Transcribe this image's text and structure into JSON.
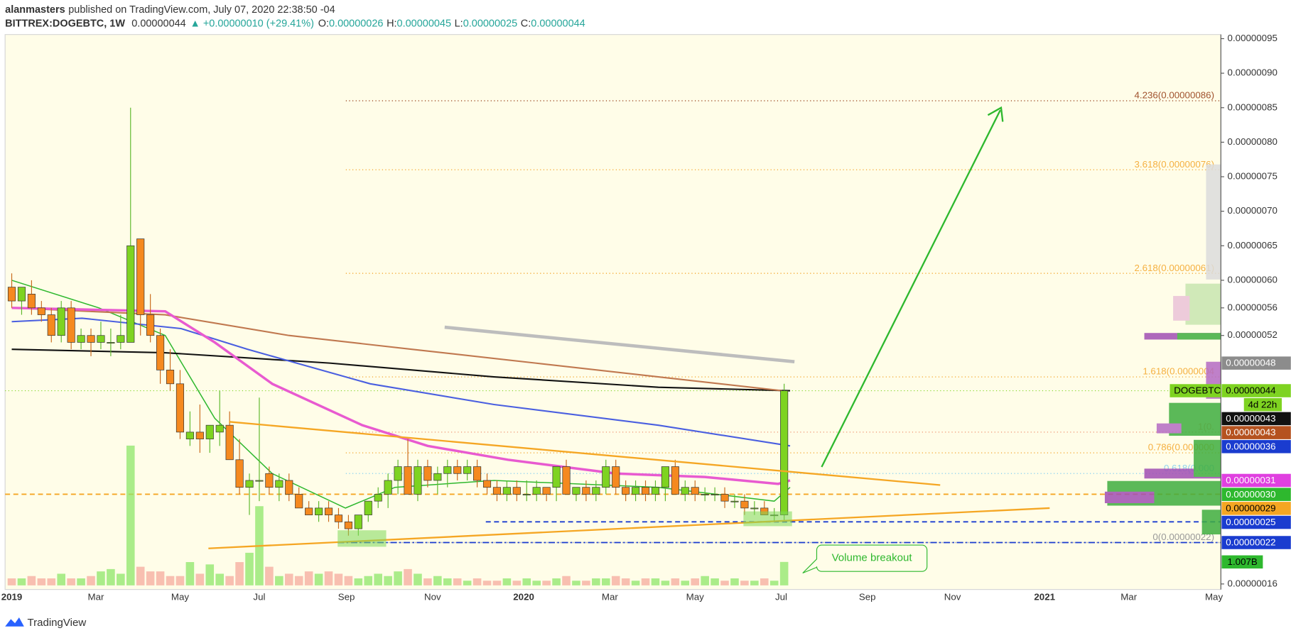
{
  "header": {
    "author": "alanmasters",
    "published": "published on TradingView.com, July 07, 2020 22:38:50 -04",
    "symbol": "BITTREX:DOGEBTC, 1W",
    "last": "0.00000044",
    "change": "▲ +0.00000010 (+29.41%)",
    "o_label": "O:",
    "o": "0.00000026",
    "h_label": "H:",
    "h": "0.00000045",
    "l_label": "L:",
    "l": "0.00000025",
    "c_label": "C:",
    "c": "0.00000044"
  },
  "footer": {
    "brand": "TradingView"
  },
  "chart_data": {
    "type": "candlestick",
    "up_color": "#7ed321",
    "down_color": "#f5891f",
    "ylim": [
      1.52e-07,
      9.56e-07
    ],
    "yticks": [
      {
        "value": 9.5e-07,
        "label": "0.00000095"
      },
      {
        "value": 9e-07,
        "label": "0.00000090"
      },
      {
        "value": 8.5e-07,
        "label": "0.00000085"
      },
      {
        "value": 8e-07,
        "label": "0.00000080"
      },
      {
        "value": 7.5e-07,
        "label": "0.00000075"
      },
      {
        "value": 7e-07,
        "label": "0.00000070"
      },
      {
        "value": 6.5e-07,
        "label": "0.00000065"
      },
      {
        "value": 6e-07,
        "label": "0.00000060"
      },
      {
        "value": 5.6e-07,
        "label": "0.00000056"
      },
      {
        "value": 5.2e-07,
        "label": "0.00000052"
      },
      {
        "value": 1.6e-07,
        "label": "0.00000016"
      }
    ],
    "xlim": [
      -0.67,
      122.1
    ],
    "xticks": [
      {
        "value": 0,
        "label": "2019"
      },
      {
        "value": 8.5,
        "label": "Mar"
      },
      {
        "value": 17,
        "label": "May"
      },
      {
        "value": 25,
        "label": "Jul"
      },
      {
        "value": 33.8,
        "label": "Sep"
      },
      {
        "value": 42.5,
        "label": "Nov"
      },
      {
        "value": 51.7,
        "label": "2020"
      },
      {
        "value": 60.4,
        "label": "Mar"
      },
      {
        "value": 69,
        "label": "May"
      },
      {
        "value": 77.7,
        "label": "Jul"
      },
      {
        "value": 86.4,
        "label": "Sep"
      },
      {
        "value": 95,
        "label": "Nov"
      },
      {
        "value": 104.3,
        "label": "2021"
      },
      {
        "value": 112.8,
        "label": "Mar"
      },
      {
        "value": 121.4,
        "label": "May"
      }
    ],
    "candles": [
      [
        5.9e-07,
        6.1e-07,
        5.6e-07,
        5.7e-07
      ],
      [
        5.7e-07,
        5.9e-07,
        5.5e-07,
        5.9e-07
      ],
      [
        5.8e-07,
        6e-07,
        5.5e-07,
        5.6e-07
      ],
      [
        5.6e-07,
        5.7e-07,
        5.4e-07,
        5.5e-07
      ],
      [
        5.5e-07,
        5.6e-07,
        5.1e-07,
        5.2e-07
      ],
      [
        5.2e-07,
        5.7e-07,
        5.1e-07,
        5.6e-07
      ],
      [
        5.6e-07,
        5.7e-07,
        5e-07,
        5.1e-07
      ],
      [
        5.1e-07,
        5.3e-07,
        5e-07,
        5.2e-07
      ],
      [
        5.2e-07,
        5.3e-07,
        4.9e-07,
        5.1e-07
      ],
      [
        5.1e-07,
        5.4e-07,
        5e-07,
        5.2e-07
      ],
      [
        5.1e-07,
        5.3e-07,
        4.9e-07,
        5.1e-07
      ],
      [
        5.1e-07,
        5.5e-07,
        5e-07,
        5.2e-07
      ],
      [
        5.1e-07,
        8.5e-07,
        5.1e-07,
        6.5e-07
      ],
      [
        6.6e-07,
        6.6e-07,
        5.2e-07,
        5.5e-07
      ],
      [
        5.5e-07,
        5.8e-07,
        5.1e-07,
        5.2e-07
      ],
      [
        5.2e-07,
        5.3e-07,
        4.5e-07,
        4.7e-07
      ],
      [
        4.7e-07,
        5e-07,
        4.4e-07,
        4.5e-07
      ],
      [
        4.5e-07,
        4.7e-07,
        3.7e-07,
        3.8e-07
      ],
      [
        3.7e-07,
        4.1e-07,
        3.6e-07,
        3.8e-07
      ],
      [
        3.8e-07,
        4.2e-07,
        3.5e-07,
        3.7e-07
      ],
      [
        3.7e-07,
        3.9e-07,
        3.5e-07,
        3.9e-07
      ],
      [
        3.8e-07,
        4.4e-07,
        3.6e-07,
        3.9e-07
      ],
      [
        3.9e-07,
        4.1e-07,
        3.4e-07,
        3.4e-07
      ],
      [
        3.4e-07,
        3.7e-07,
        2.9e-07,
        3e-07
      ],
      [
        3e-07,
        3.2e-07,
        2.6e-07,
        3.1e-07
      ],
      [
        3.1e-07,
        4.3e-07,
        2.8e-07,
        3.1e-07
      ],
      [
        3.2e-07,
        3.3e-07,
        2.9e-07,
        3e-07
      ],
      [
        3e-07,
        3.2e-07,
        2.8e-07,
        3.1e-07
      ],
      [
        3.1e-07,
        3.2e-07,
        2.8e-07,
        2.9e-07
      ],
      [
        2.9e-07,
        3e-07,
        2.7e-07,
        2.7e-07
      ],
      [
        2.7e-07,
        2.8e-07,
        2.6e-07,
        2.6e-07
      ],
      [
        2.6e-07,
        2.8e-07,
        2.5e-07,
        2.7e-07
      ],
      [
        2.7e-07,
        2.8e-07,
        2.5e-07,
        2.6e-07
      ],
      [
        2.6e-07,
        2.7e-07,
        2.4e-07,
        2.5e-07
      ],
      [
        2.5e-07,
        2.6e-07,
        2.3e-07,
        2.4e-07
      ],
      [
        2.4e-07,
        2.6e-07,
        2.3e-07,
        2.6e-07
      ],
      [
        2.6e-07,
        2.8e-07,
        2.5e-07,
        2.8e-07
      ],
      [
        2.8e-07,
        3e-07,
        2.7e-07,
        2.9e-07
      ],
      [
        2.9e-07,
        3.2e-07,
        2.7e-07,
        3.1e-07
      ],
      [
        3.1e-07,
        3.4e-07,
        2.9e-07,
        3.3e-07
      ],
      [
        3.3e-07,
        3.7e-07,
        2.9e-07,
        2.9e-07
      ],
      [
        2.9e-07,
        3.4e-07,
        2.8e-07,
        3.3e-07
      ],
      [
        3.3e-07,
        3.4e-07,
        3e-07,
        3.1e-07
      ],
      [
        3.1e-07,
        3.3e-07,
        2.9e-07,
        3.2e-07
      ],
      [
        3.2e-07,
        3.4e-07,
        3e-07,
        3.3e-07
      ],
      [
        3.3e-07,
        3.4e-07,
        3.1e-07,
        3.2e-07
      ],
      [
        3.2e-07,
        3.4e-07,
        3.1e-07,
        3.3e-07
      ],
      [
        3.3e-07,
        3.4e-07,
        3e-07,
        3.1e-07
      ],
      [
        3.1e-07,
        3.2e-07,
        2.9e-07,
        3e-07
      ],
      [
        3e-07,
        3.1e-07,
        2.8e-07,
        2.9e-07
      ],
      [
        2.9e-07,
        3.1e-07,
        2.8e-07,
        3e-07
      ],
      [
        3e-07,
        3.1e-07,
        2.8e-07,
        2.9e-07
      ],
      [
        2.9e-07,
        3.1e-07,
        2.8e-07,
        2.9e-07
      ],
      [
        2.9e-07,
        3.1e-07,
        2.8e-07,
        3e-07
      ],
      [
        3e-07,
        3e-07,
        2.8e-07,
        2.9e-07
      ],
      [
        3e-07,
        3.3e-07,
        2.8e-07,
        3.3e-07
      ],
      [
        3.3e-07,
        3.4e-07,
        2.9e-07,
        2.9e-07
      ],
      [
        2.9e-07,
        3e-07,
        2.8e-07,
        3e-07
      ],
      [
        3e-07,
        3.1e-07,
        2.8e-07,
        2.9e-07
      ],
      [
        2.9e-07,
        3.1e-07,
        2.8e-07,
        3e-07
      ],
      [
        3e-07,
        3.4e-07,
        2.9e-07,
        3.3e-07
      ],
      [
        3.3e-07,
        3.4e-07,
        2.9e-07,
        3e-07
      ],
      [
        3e-07,
        3.1e-07,
        2.8e-07,
        2.9e-07
      ],
      [
        2.9e-07,
        3.1e-07,
        2.8e-07,
        3e-07
      ],
      [
        3e-07,
        3.1e-07,
        2.8e-07,
        2.9e-07
      ],
      [
        2.9e-07,
        3.1e-07,
        2.8e-07,
        3e-07
      ],
      [
        3e-07,
        3.3e-07,
        2.8e-07,
        3.3e-07
      ],
      [
        3.3e-07,
        3.4e-07,
        2.9e-07,
        2.9e-07
      ],
      [
        2.9e-07,
        3.1e-07,
        2.8e-07,
        3e-07
      ],
      [
        3e-07,
        3.1e-07,
        2.8e-07,
        2.9e-07
      ],
      [
        2.9e-07,
        3e-07,
        2.8e-07,
        2.9e-07
      ],
      [
        2.9e-07,
        3e-07,
        2.8e-07,
        2.9e-07
      ],
      [
        2.9e-07,
        3e-07,
        2.7e-07,
        2.8e-07
      ],
      [
        2.8e-07,
        2.9e-07,
        2.7e-07,
        2.8e-07
      ],
      [
        2.8e-07,
        2.9e-07,
        2.6e-07,
        2.7e-07
      ],
      [
        2.7e-07,
        2.8e-07,
        2.6e-07,
        2.7e-07
      ],
      [
        2.7e-07,
        2.8e-07,
        2.6e-07,
        2.6e-07
      ],
      [
        2.6e-07,
        2.7e-07,
        2.5e-07,
        2.6e-07
      ],
      [
        2.6e-07,
        4.5e-07,
        2.5e-07,
        4.4e-07
      ]
    ],
    "volume": {
      "values": [
        300000000.0,
        300000000.0,
        400000000.0,
        300000000.0,
        300000000.0,
        500000000.0,
        300000000.0,
        300000000.0,
        400000000.0,
        600000000.0,
        700000000.0,
        500000000.0,
        6000000000.0,
        800000000.0,
        600000000.0,
        600000000.0,
        400000000.0,
        400000000.0,
        1000000000.0,
        500000000.0,
        900000000.0,
        500000000.0,
        400000000.0,
        1000000000.0,
        1400000000.0,
        3400000000.0,
        800000000.0,
        400000000.0,
        500000000.0,
        400000000.0,
        600000000.0,
        500000000.0,
        600000000.0,
        500000000.0,
        400000000.0,
        300000000.0,
        400000000.0,
        500000000.0,
        400000000.0,
        600000000.0,
        700000000.0,
        500000000.0,
        300000000.0,
        400000000.0,
        300000000.0,
        300000000.0,
        200000000.0,
        300000000.0,
        200000000.0,
        200000000.0,
        300000000.0,
        200000000.0,
        300000000.0,
        200000000.0,
        200000000.0,
        300000000.0,
        400000000.0,
        200000000.0,
        200000000.0,
        300000000.0,
        300000000.0,
        400000000.0,
        300000000.0,
        200000000.0,
        300000000.0,
        300000000.0,
        200000000.0,
        300000000.0,
        200000000.0,
        300000000.0,
        400000000.0,
        300000000.0,
        200000000.0,
        300000000.0,
        200000000.0,
        200000000.0,
        300000000.0,
        200000000.0,
        1007000000.0
      ],
      "last_label": "1.007B"
    },
    "overlays": [
      {
        "color": "#2eb82e",
        "x": [
          0,
          8.8,
          15.5,
          20.5,
          26.3,
          33.7,
          38.7,
          48.7,
          65.3,
          77,
          78.6
        ],
        "values": [
          6e-07,
          5.6e-07,
          5.2e-07,
          4e-07,
          3.2e-07,
          2.7e-07,
          3e-07,
          3.1e-07,
          3e-07,
          2.8e-07,
          3e-07
        ]
      },
      {
        "color": "#111111",
        "x": [
          0,
          15.5,
          32.1,
          48.7,
          65.3,
          78.6
        ],
        "values": [
          5e-07,
          4.95e-07,
          4.8e-07,
          4.6e-07,
          4.45e-07,
          4.4e-07
        ]
      },
      {
        "color": "#c0784f",
        "x": [
          0,
          15.5,
          28,
          40.4,
          52.9,
          65.3,
          77.8
        ],
        "values": [
          5.6e-07,
          5.5e-07,
          5.2e-07,
          5e-07,
          4.8e-07,
          4.6e-07,
          4.4e-07
        ]
      },
      {
        "color": "#4a5fe0",
        "x": [
          0,
          7.1,
          17.1,
          23.8,
          36.2,
          48.7,
          65.3,
          78.6
        ],
        "values": [
          5.4e-07,
          5.45e-07,
          5.3e-07,
          5e-07,
          4.5e-07,
          4.2e-07,
          3.9e-07,
          3.6e-07
        ]
      },
      {
        "color": "#e85ad0",
        "x": [
          0,
          15.5,
          20.5,
          26.3,
          35.4,
          42,
          50.1,
          61,
          70,
          77.4,
          78.6
        ],
        "values": [
          5.6e-07,
          5.55e-07,
          5.1e-07,
          4.5e-07,
          3.9e-07,
          3.6e-07,
          3.4e-07,
          3.2e-07,
          3.15e-07,
          3.05e-07,
          3.1e-07
        ]
      }
    ],
    "fib": [
      {
        "value": 8.6e-07,
        "label": "4.236(0.00000086)",
        "color": "#a0522d"
      },
      {
        "value": 7.6e-07,
        "label": "3.618(0.00000076)",
        "color": "#f5b041"
      },
      {
        "value": 6.1e-07,
        "label": "2.618(0.00000061)",
        "color": "#f5b041"
      },
      {
        "value": 4.6e-07,
        "label": "1.618(0.0000004",
        "color": "#f5b041"
      },
      {
        "value": 3.8e-07,
        "label": "1(0.",
        "color": "#f0a080"
      },
      {
        "value": 3.5e-07,
        "label": "0.786(0.000000",
        "color": "#f5b041"
      },
      {
        "value": 3.2e-07,
        "label": "0.618(0.000",
        "color": "#8fd3f0"
      },
      {
        "value": 2.2e-07,
        "label": "0(0.00000022)",
        "color": "#999999"
      }
    ],
    "price_labels": [
      {
        "value": 4.8e-07,
        "label": "0.00000048",
        "color": "#8c8c8c",
        "text_color": "#ffffff"
      },
      {
        "value": 4.4e-07,
        "label": "0.00000044",
        "name": "DOGEBTC",
        "countdown": "4d 22h",
        "color": "#7ed321",
        "text_color": "#000000",
        "line": "dot"
      },
      {
        "value": 4.3e-07,
        "label": "0.00000043",
        "color": "#111111",
        "text_color": "#ffffff"
      },
      {
        "value": 4.3e-07,
        "label": "0.00000043",
        "color": "#b5521f",
        "text_color": "#ffffff"
      },
      {
        "value": 3.6e-07,
        "label": "0.00000036",
        "color": "#1a3ccf",
        "text_color": "#ffffff"
      },
      {
        "value": 3.1e-07,
        "label": "0.00000031",
        "color": "#e040e0",
        "text_color": "#ffffff"
      },
      {
        "value": 3e-07,
        "label": "0.00000030",
        "color": "#2eb82e",
        "text_color": "#ffffff"
      },
      {
        "value": 2.9e-07,
        "label": "0.00000029",
        "color": "#f5a623",
        "text_color": "#000000",
        "line": "dash"
      },
      {
        "value": 2.5e-07,
        "label": "0.00000025",
        "color": "#1a3ccf",
        "text_color": "#ffffff",
        "line": "dash"
      },
      {
        "value": 2.2e-07,
        "label": "0.00000022",
        "color": "#1a3ccf",
        "text_color": "#ffffff",
        "line": "dashdot"
      }
    ],
    "annotation": "Volume breakout"
  }
}
